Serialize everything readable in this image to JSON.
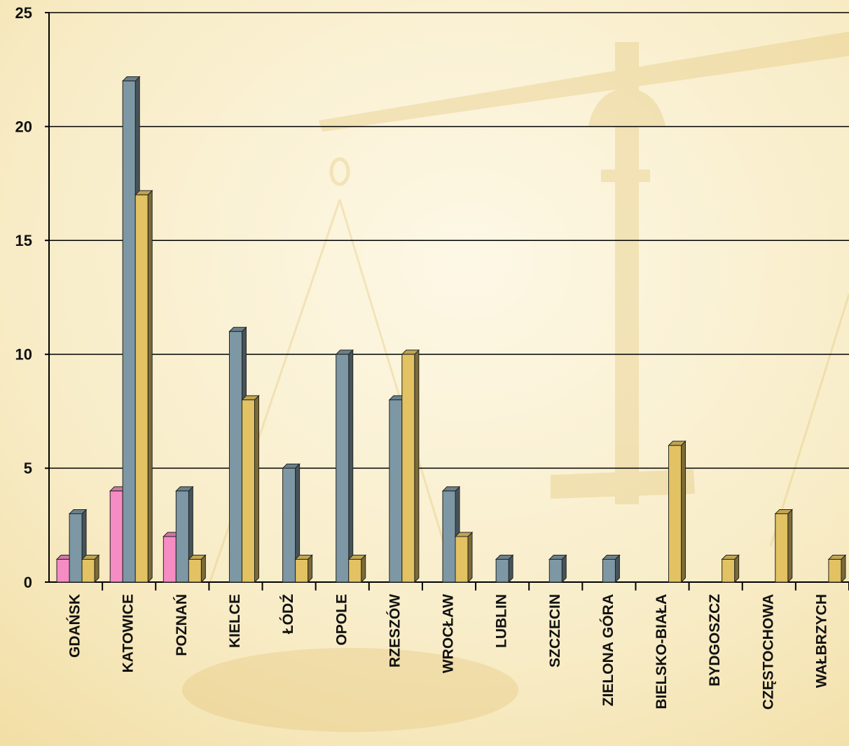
{
  "chart_data": {
    "type": "bar3d",
    "categories": [
      "GDAŃSK",
      "KATOWICE",
      "POZNAŃ",
      "KIELCE",
      "ŁÓDŹ",
      "OPOLE",
      "RZESZÓW",
      "WROCŁAW",
      "LUBLIN",
      "SZCZECIN",
      "ZIELONA GÓRA",
      "BIELSKO-BIAŁA",
      "BYDGOSZCZ",
      "CZĘSTOCHOWA",
      "WAŁBRZYCH"
    ],
    "series": [
      {
        "color": "#f58cc4",
        "values": [
          1,
          4,
          2,
          null,
          null,
          null,
          null,
          null,
          null,
          null,
          null,
          null,
          null,
          null,
          null
        ]
      },
      {
        "color": "#7d98a4",
        "values": [
          3,
          22,
          4,
          11,
          5,
          10,
          8,
          4,
          1,
          1,
          1,
          null,
          null,
          null,
          null
        ]
      },
      {
        "color": "#e2c262",
        "values": [
          1,
          17,
          1,
          8,
          1,
          1,
          10,
          2,
          null,
          null,
          null,
          6,
          1,
          3,
          1
        ]
      }
    ],
    "ylim": [
      0,
      25
    ],
    "yticks": [
      0,
      5,
      10,
      15,
      20,
      25
    ],
    "grid": true
  }
}
